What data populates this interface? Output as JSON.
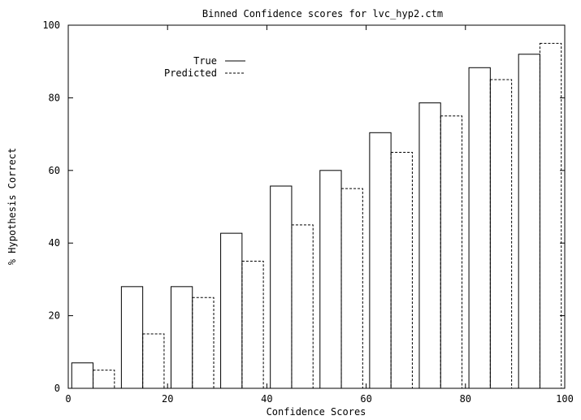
{
  "chart_data": {
    "type": "bar",
    "title": "Binned Confidence scores for lvc_hyp2.ctm",
    "xlabel": "Confidence Scores",
    "ylabel": "% Hypothesis Correct",
    "xlim": [
      0,
      100
    ],
    "ylim": [
      0,
      100
    ],
    "xticks": [
      0,
      20,
      40,
      60,
      80,
      100
    ],
    "yticks": [
      0,
      20,
      40,
      60,
      80,
      100
    ],
    "grid": false,
    "legend_position": "top-left",
    "bins": [
      [
        0,
        10
      ],
      [
        10,
        20
      ],
      [
        20,
        30
      ],
      [
        30,
        40
      ],
      [
        40,
        50
      ],
      [
        50,
        60
      ],
      [
        60,
        70
      ],
      [
        70,
        80
      ],
      [
        80,
        90
      ],
      [
        90,
        100
      ]
    ],
    "series": [
      {
        "name": "True",
        "line_style": "solid",
        "values": [
          7,
          28,
          28,
          42.7,
          55.7,
          60,
          70.4,
          78.6,
          88.3,
          92
        ]
      },
      {
        "name": "Predicted",
        "line_style": "dashed",
        "values": [
          5,
          15,
          25,
          35,
          45,
          55,
          65,
          75,
          85,
          95
        ]
      }
    ]
  }
}
